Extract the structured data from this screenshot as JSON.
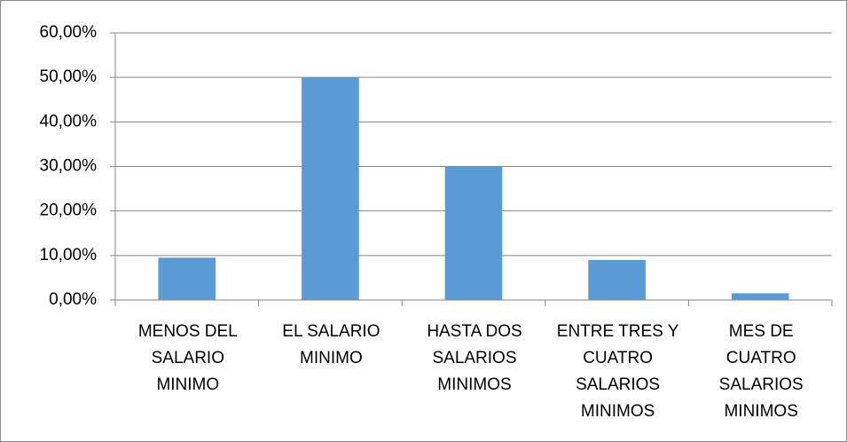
{
  "chart_data": {
    "type": "bar",
    "categories": [
      "MENOS DEL\nSALARIO\nMINIMO",
      "EL SALARIO\nMINIMO",
      "HASTA DOS\nSALARIOS\nMINIMOS",
      "ENTRE TRES Y\nCUATRO\nSALARIOS\nMINIMOS",
      "MES DE\nCUATRO\nSALARIOS\nMINIMOS"
    ],
    "values": [
      9.5,
      50,
      30,
      9,
      1.5
    ],
    "color": "#5b9bd5",
    "ylim": [
      0,
      60
    ],
    "yticks": [
      {
        "value": 0,
        "label": "0,00%"
      },
      {
        "value": 10,
        "label": "10,00%"
      },
      {
        "value": 20,
        "label": "20,00%"
      },
      {
        "value": 30,
        "label": "30,00%"
      },
      {
        "value": 40,
        "label": "40,00%"
      },
      {
        "value": 50,
        "label": "50,00%"
      },
      {
        "value": 60,
        "label": "60,00%"
      }
    ],
    "grid": true
  }
}
